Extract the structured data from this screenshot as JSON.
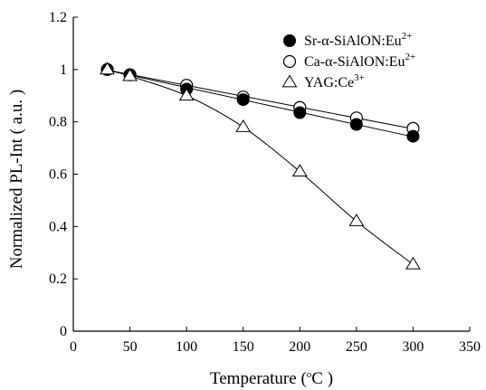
{
  "chart_data": {
    "type": "scatter",
    "title": "",
    "xlabel": "Temperature (",
    "xlabel_unit_sup": "o",
    "xlabel_unit_rest": "C )",
    "ylabel": "Normalized PL-Int ( a.u. )",
    "xlim": [
      0,
      350
    ],
    "ylim": [
      0,
      1.2
    ],
    "xticks": [
      "0",
      "50",
      "100",
      "150",
      "200",
      "250",
      "300",
      "350"
    ],
    "yticks": [
      "0",
      "0.2",
      "0.4",
      "0.6",
      "0.8",
      "1",
      "1.2"
    ],
    "x": [
      30,
      50,
      100,
      150,
      200,
      250,
      300
    ],
    "legend_position": "top-right",
    "grid": false,
    "series": [
      {
        "name": "Sr-α-SiAlON:Eu",
        "name_sup": "2+",
        "marker": "filled-circle",
        "color": "#000000",
        "values": [
          1.0,
          0.98,
          0.925,
          0.885,
          0.835,
          0.79,
          0.745
        ],
        "fit": "linear"
      },
      {
        "name": "Ca-α-SiAlON:Eu",
        "name_sup": "2+",
        "marker": "open-circle",
        "color": "#000000",
        "values": [
          1.0,
          0.98,
          0.94,
          0.895,
          0.855,
          0.815,
          0.775
        ],
        "fit": "linear"
      },
      {
        "name": "YAG:Ce",
        "name_sup": "3+",
        "marker": "open-triangle",
        "color": "#000000",
        "values": [
          1.0,
          0.975,
          0.9,
          0.78,
          0.61,
          0.42,
          0.255
        ],
        "fit": "curve"
      }
    ]
  }
}
